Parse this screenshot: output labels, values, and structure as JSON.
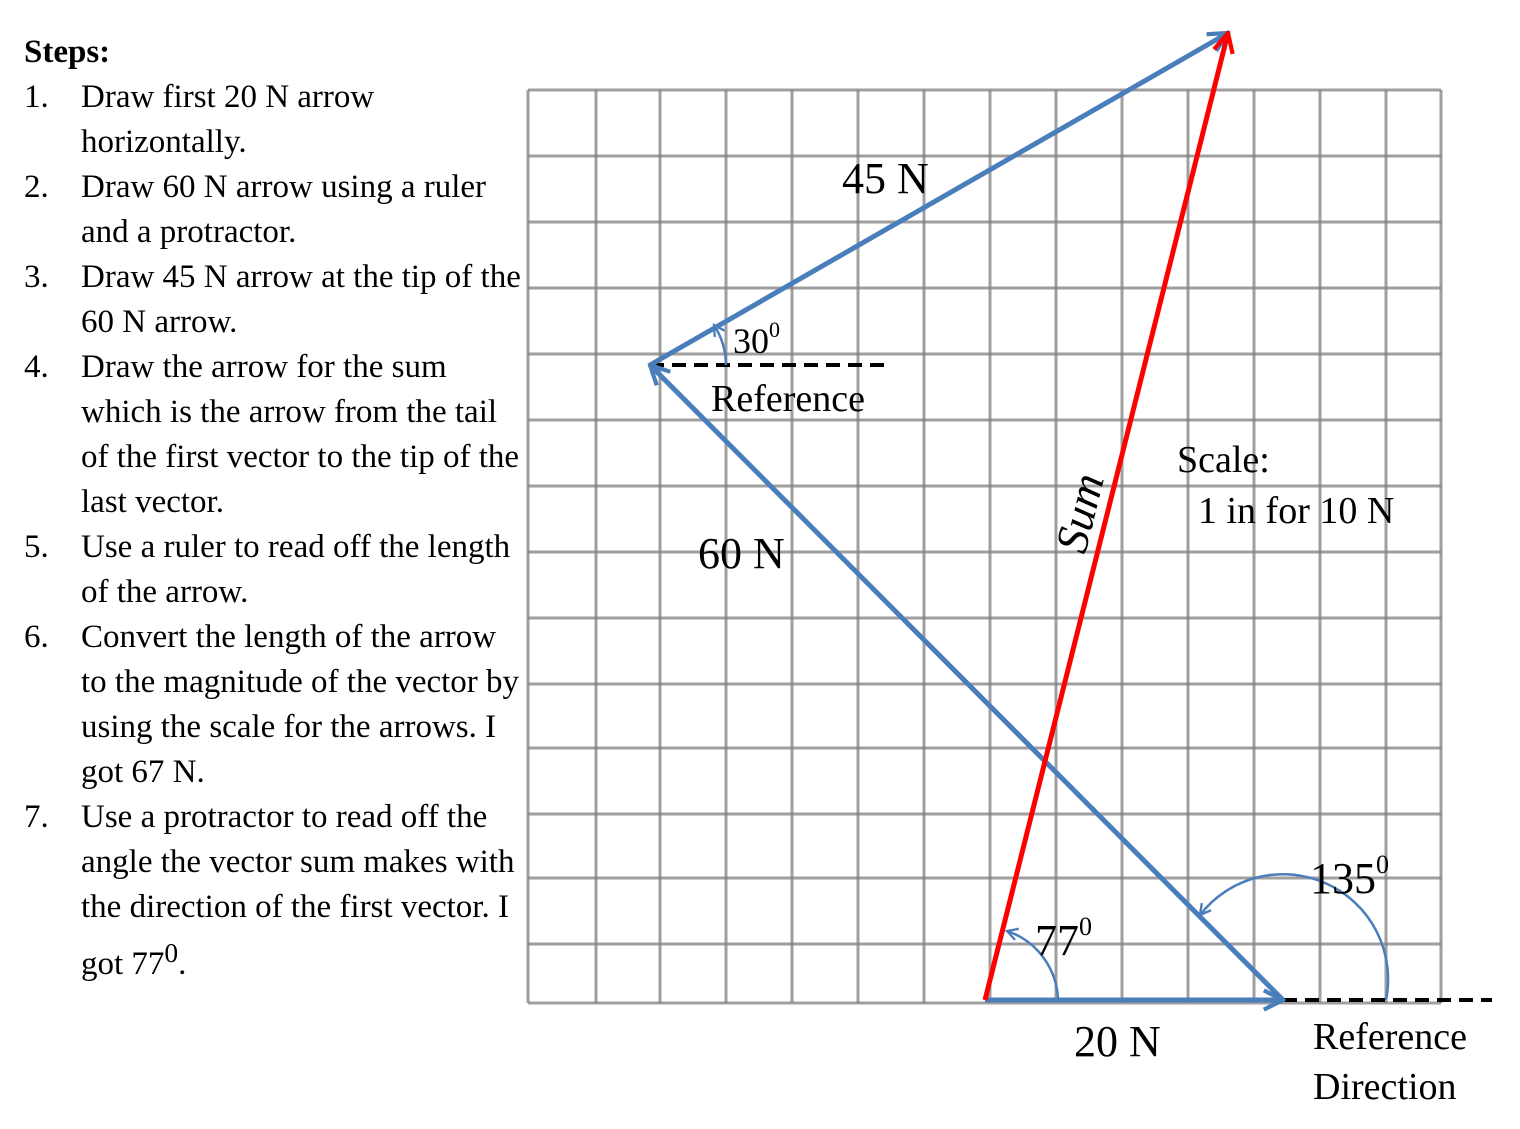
{
  "steps": {
    "heading": "Steps:",
    "items": [
      {
        "num": "1.",
        "text": "Draw first 20 N arrow horizontally."
      },
      {
        "num": "2.",
        "text": "Draw 60 N arrow using a ruler and a protractor."
      },
      {
        "num": "3.",
        "text": "Draw 45 N arrow at the tip of the 60 N arrow."
      },
      {
        "num": "4.",
        "text": "Draw the arrow for the sum which  is the arrow from the tail of the first vector to the tip of the last vector."
      },
      {
        "num": "5.",
        "text": "Use a ruler to read off the length of the arrow."
      },
      {
        "num": "6.",
        "text": "Convert the length of the arrow to the magnitude of the vector by using the scale for the arrows. I got 67 N."
      },
      {
        "num": "7.",
        "text": "Use a protractor to read off the angle the vector sum makes with the direction of the first vector. I got 77",
        "sup": "0",
        "after": "."
      }
    ]
  },
  "diagram": {
    "vectors": {
      "v20": {
        "label": "20 N",
        "magnitude": 20,
        "angle_deg": 0
      },
      "v60": {
        "label": "60 N",
        "magnitude": 60,
        "angle_deg": 135
      },
      "v45": {
        "label": "45 N",
        "magnitude": 45,
        "angle_deg": 30
      },
      "sum": {
        "label": "Sum",
        "magnitude": 67,
        "angle_deg": 77
      }
    },
    "angles": {
      "a30": {
        "value": "30",
        "sup": "0"
      },
      "a77": {
        "value": "77",
        "sup": "0"
      },
      "a135": {
        "value": "135",
        "sup": "0"
      }
    },
    "reference_label": "Reference",
    "reference_direction": {
      "line1": "Reference",
      "line2": "Direction"
    },
    "scale": {
      "line1": "Scale:",
      "line2": "1 in for 10 N"
    },
    "colors": {
      "vector": "#4a7ebb",
      "sum": "#ff0000",
      "grid": "#808080"
    }
  }
}
